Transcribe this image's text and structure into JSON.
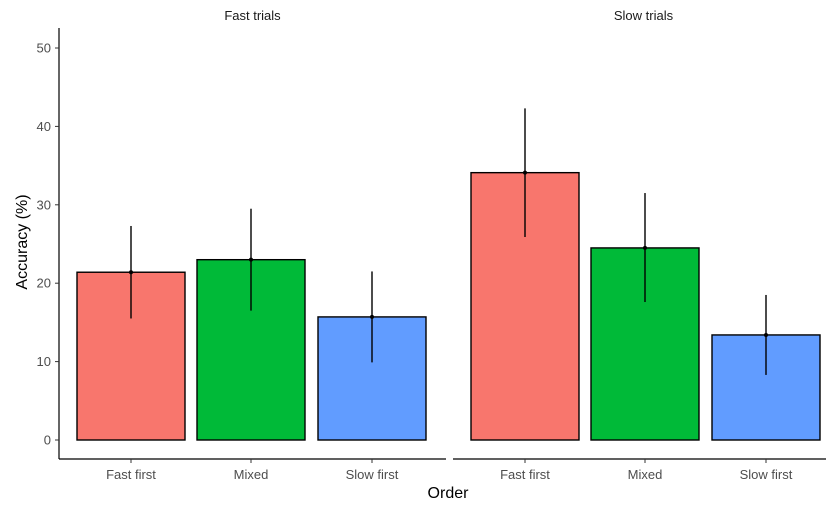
{
  "chart_data": {
    "type": "bar",
    "facets": [
      {
        "title": "Fast trials",
        "categories": [
          "Fast first",
          "Mixed",
          "Slow first"
        ],
        "values": [
          21.4,
          23.0,
          15.7
        ],
        "error_low": [
          15.5,
          16.5,
          9.9
        ],
        "error_high": [
          27.3,
          29.5,
          21.5
        ]
      },
      {
        "title": "Slow trials",
        "categories": [
          "Fast first",
          "Mixed",
          "Slow first"
        ],
        "values": [
          34.1,
          24.5,
          13.4
        ],
        "error_low": [
          25.9,
          17.6,
          8.3
        ],
        "error_high": [
          42.3,
          31.5,
          18.5
        ]
      }
    ],
    "xlabel": "Order",
    "ylabel": "Accuracy (%)",
    "ylim": [
      0,
      50
    ],
    "yticks": [
      0,
      10,
      20,
      30,
      40,
      50
    ],
    "colors": [
      "#F8766D",
      "#00BA38",
      "#619CFF"
    ],
    "grid": false,
    "legend": "none"
  }
}
